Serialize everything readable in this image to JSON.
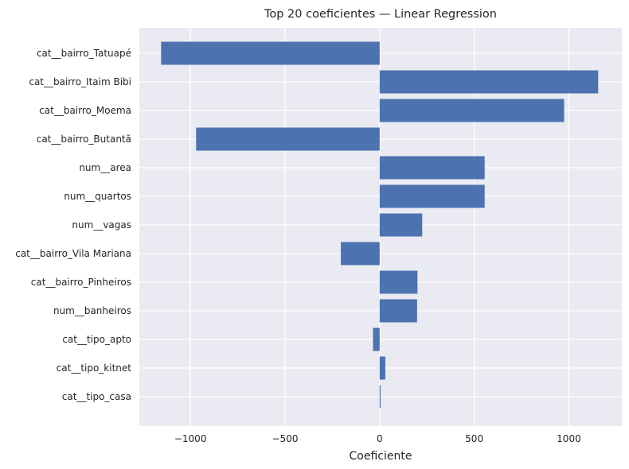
{
  "chart_data": {
    "type": "bar",
    "orientation": "horizontal",
    "title": "Top 20 coeficientes — Linear Regression",
    "xlabel": "Coeficiente",
    "ylabel": "",
    "categories": [
      "cat__bairro_Tatuapé",
      "cat__bairro_Itaim Bibi",
      "cat__bairro_Moema",
      "cat__bairro_Butantã",
      "num__area",
      "num__quartos",
      "num__vagas",
      "cat__bairro_Vila Mariana",
      "cat__bairro_Pinheiros",
      "num__banheiros",
      "cat__tipo_apto",
      "cat__tipo_kitnet",
      "cat__tipo_casa"
    ],
    "values": [
      -1155,
      1155,
      975,
      -970,
      555,
      555,
      225,
      -205,
      200,
      198,
      -35,
      30,
      5
    ],
    "xlim": [
      -1270,
      1280
    ],
    "xticks": [
      -1000,
      -500,
      0,
      500,
      1000
    ],
    "xtick_labels": [
      "−1000",
      "−500",
      "0",
      "500",
      "1000"
    ],
    "grid": true,
    "bar_color": "#4c72b0",
    "background_color": "#eaeaf2"
  }
}
